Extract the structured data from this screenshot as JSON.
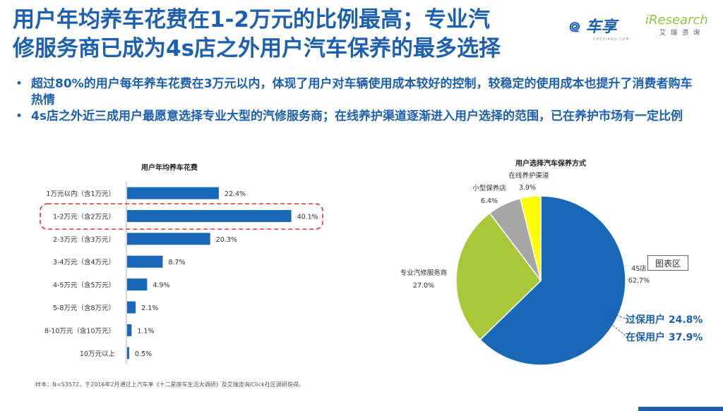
{
  "title": "用户年均养车花费在1-2万元的比例最高；专业汽修服务商已成为4s店之外用户汽车保养的最多选择",
  "title_lines": [
    "用户年均养车花费在1-2万元的比例最高；专业汽",
    "修服务商已成为4s店之外用户汽车保养的最多选择"
  ],
  "logos": {
    "chexiang": "车享",
    "chexiang_sub": "CHEXIANG.COM",
    "iresearch": "iResearch",
    "iresearch_cn": "艾瑞咨询"
  },
  "bullets": [
    "超过80%的用户每年养车花费在3万元以内，体现了用户对车辆使用成本较好的控制，较稳定的使用成本也提升了消费者购车热情",
    "4s店之外近三成用户最愿意选择专业大型的汽修服务商；在线养护渠道逐渐进入用户选择的范围，已在养护市场有一定比例"
  ],
  "chart_data": [
    {
      "type": "bar",
      "orientation": "horizontal",
      "title": "用户年均养车花费",
      "categories": [
        "1万元以内（含1万元）",
        "1-2万元（含2万元）",
        "2-3万元（含3万元）",
        "3-4万元（含4万元）",
        "4-5万元（含5万元）",
        "5-8万元（含8万元）",
        "8-10万元（含10万元）",
        "10万元以上"
      ],
      "values": [
        22.4,
        40.1,
        20.3,
        8.7,
        4.9,
        2.1,
        1.1,
        0.5
      ],
      "value_labels": [
        "22.4%",
        "40.1%",
        "20.3%",
        "8.7%",
        "4.9%",
        "2.1%",
        "1.1%",
        "0.5%"
      ],
      "highlighted_category": "1-2万元（含2万元）",
      "color": "#1868b7",
      "highlight_color": "#e0302a"
    },
    {
      "type": "pie",
      "title": "用户选择汽车保养方式",
      "labels": [
        "4S店",
        "专业汽修服务商",
        "小型保养店",
        "在线养护渠道"
      ],
      "values": [
        62.7,
        27.0,
        6.4,
        3.9
      ],
      "value_labels": [
        "62.7%",
        "27.0%",
        "6.4%",
        "3.9%"
      ],
      "colors": [
        "#1868b7",
        "#a8c83a",
        "#a6a6a6",
        "#ffff00"
      ],
      "annotations": [
        "过保用户 24.8%",
        "在保用户 37.9%"
      ],
      "annotation_color": "#1d5fb0"
    }
  ],
  "chart_area_label": "图表区",
  "footnote": "样本：N=53572，于2016年2月通过上汽车享《十二星座车生活大调研》及艾瑞咨询iClick社区调研获得。"
}
